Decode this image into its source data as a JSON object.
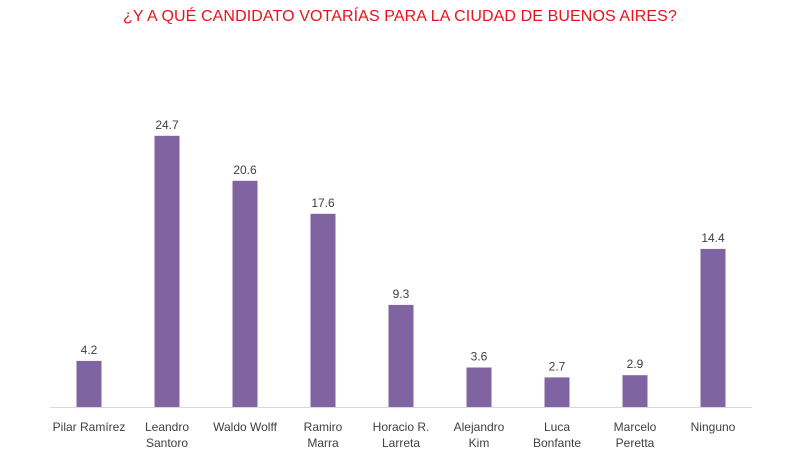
{
  "chart_data": {
    "type": "bar",
    "title": "¿Y A QUÉ CANDIDATO VOTARÍAS PARA LA CIUDAD DE BUENOS AIRES?",
    "categories": [
      [
        "Pilar Ramírez"
      ],
      [
        "Leandro",
        "Santoro"
      ],
      [
        "Waldo Wolff"
      ],
      [
        "Ramiro",
        "Marra"
      ],
      [
        "Horacio R.",
        "Larreta"
      ],
      [
        "Alejandro",
        "Kim"
      ],
      [
        "Luca",
        "Bonfante"
      ],
      [
        "Marcelo",
        "Peretta"
      ],
      [
        "Ninguno"
      ]
    ],
    "values": [
      4.2,
      24.7,
      20.6,
      17.6,
      9.3,
      3.6,
      2.7,
      2.9,
      14.4
    ],
    "value_labels": [
      "4.2",
      "24.7",
      "20.6",
      "17.6",
      "9.3",
      "3.6",
      "2.7",
      "2.9",
      "14.4"
    ],
    "xlabel": "",
    "ylabel": "",
    "ylim": [
      0,
      26
    ],
    "grid": false,
    "bar_color": "#8064a2",
    "axis_color": "#d9d9d9"
  },
  "colors": {
    "title": "#e8121b",
    "text": "#404040"
  }
}
